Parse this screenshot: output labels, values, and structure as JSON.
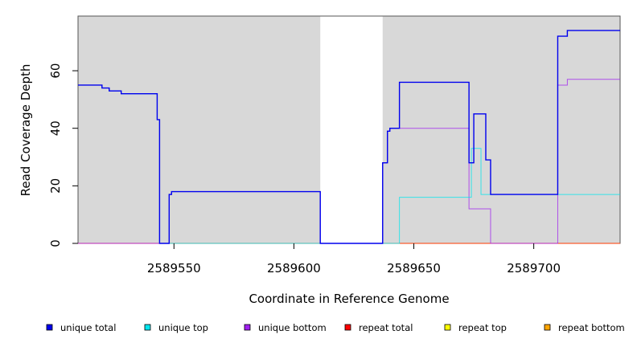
{
  "chart_data": {
    "type": "line",
    "xlabel": "Coordinate in Reference Genome",
    "ylabel": "Read Coverage Depth",
    "xlim": [
      2589510,
      2589736
    ],
    "ylim": [
      0,
      79
    ],
    "x_ticks": [
      2589550,
      2589600,
      2589650,
      2589700
    ],
    "x_tick_labels": [
      "2589550",
      "2589600",
      "2589650",
      "2589700"
    ],
    "y_ticks": [
      0,
      20,
      40,
      60
    ],
    "y_tick_labels": [
      "0",
      "20",
      "40",
      "60"
    ],
    "shaded_regions": [
      [
        2589510,
        2589611
      ],
      [
        2589637,
        2589736
      ]
    ],
    "grid": false,
    "legend_position": "bottom",
    "series": [
      {
        "name": "unique total",
        "color": "#0000ee",
        "points": [
          [
            2589510,
            55
          ],
          [
            2589520,
            55
          ],
          [
            2589520,
            54
          ],
          [
            2589523,
            54
          ],
          [
            2589523,
            53
          ],
          [
            2589528,
            53
          ],
          [
            2589528,
            52
          ],
          [
            2589543,
            52
          ],
          [
            2589543,
            43
          ],
          [
            2589544,
            43
          ],
          [
            2589544,
            0
          ],
          [
            2589548,
            0
          ],
          [
            2589548,
            17
          ],
          [
            2589549,
            17
          ],
          [
            2589549,
            18
          ],
          [
            2589611,
            18
          ],
          [
            2589611,
            0
          ],
          [
            2589637,
            0
          ],
          [
            2589637,
            28
          ],
          [
            2589639,
            28
          ],
          [
            2589639,
            39
          ],
          [
            2589640,
            39
          ],
          [
            2589640,
            40
          ],
          [
            2589644,
            40
          ],
          [
            2589644,
            56
          ],
          [
            2589673,
            56
          ],
          [
            2589673,
            28
          ],
          [
            2589675,
            28
          ],
          [
            2589675,
            45
          ],
          [
            2589680,
            45
          ],
          [
            2589680,
            29
          ],
          [
            2589682,
            29
          ],
          [
            2589682,
            17
          ],
          [
            2589710,
            17
          ],
          [
            2589710,
            72
          ],
          [
            2589714,
            72
          ],
          [
            2589714,
            74
          ],
          [
            2589736,
            74
          ]
        ]
      },
      {
        "name": "unique top",
        "color": "#00e5ee",
        "points": [
          [
            2589510,
            55
          ],
          [
            2589520,
            55
          ],
          [
            2589520,
            54
          ],
          [
            2589523,
            54
          ],
          [
            2589523,
            53
          ],
          [
            2589528,
            53
          ],
          [
            2589528,
            52
          ],
          [
            2589543,
            52
          ],
          [
            2589543,
            43
          ],
          [
            2589544,
            43
          ],
          [
            2589544,
            0
          ],
          [
            2589637,
            0
          ],
          [
            2589644,
            0
          ],
          [
            2589644,
            16
          ],
          [
            2589674,
            16
          ],
          [
            2589674,
            33
          ],
          [
            2589678,
            33
          ],
          [
            2589678,
            17
          ],
          [
            2589736,
            17
          ]
        ]
      },
      {
        "name": "unique bottom",
        "color": "#a020f0",
        "points": [
          [
            2589510,
            0
          ],
          [
            2589548,
            0
          ],
          [
            2589548,
            17
          ],
          [
            2589549,
            17
          ],
          [
            2589549,
            18
          ],
          [
            2589611,
            18
          ],
          [
            2589611,
            0
          ],
          [
            2589637,
            0
          ],
          [
            2589637,
            28
          ],
          [
            2589639,
            28
          ],
          [
            2589639,
            39
          ],
          [
            2589640,
            39
          ],
          [
            2589640,
            40
          ],
          [
            2589673,
            40
          ],
          [
            2589673,
            12
          ],
          [
            2589682,
            12
          ],
          [
            2589682,
            0
          ],
          [
            2589710,
            0
          ],
          [
            2589710,
            55
          ],
          [
            2589714,
            55
          ],
          [
            2589714,
            57
          ],
          [
            2589736,
            57
          ]
        ]
      },
      {
        "name": "repeat total",
        "color": "#ff0000",
        "points": [
          [
            2589510,
            0
          ],
          [
            2589736,
            0
          ]
        ]
      },
      {
        "name": "repeat top",
        "color": "#ffff00",
        "points": [
          [
            2589510,
            0
          ],
          [
            2589736,
            0
          ]
        ]
      },
      {
        "name": "repeat bottom",
        "color": "#ffa500",
        "points": [
          [
            2589510,
            0
          ],
          [
            2589736,
            0
          ]
        ]
      }
    ]
  }
}
